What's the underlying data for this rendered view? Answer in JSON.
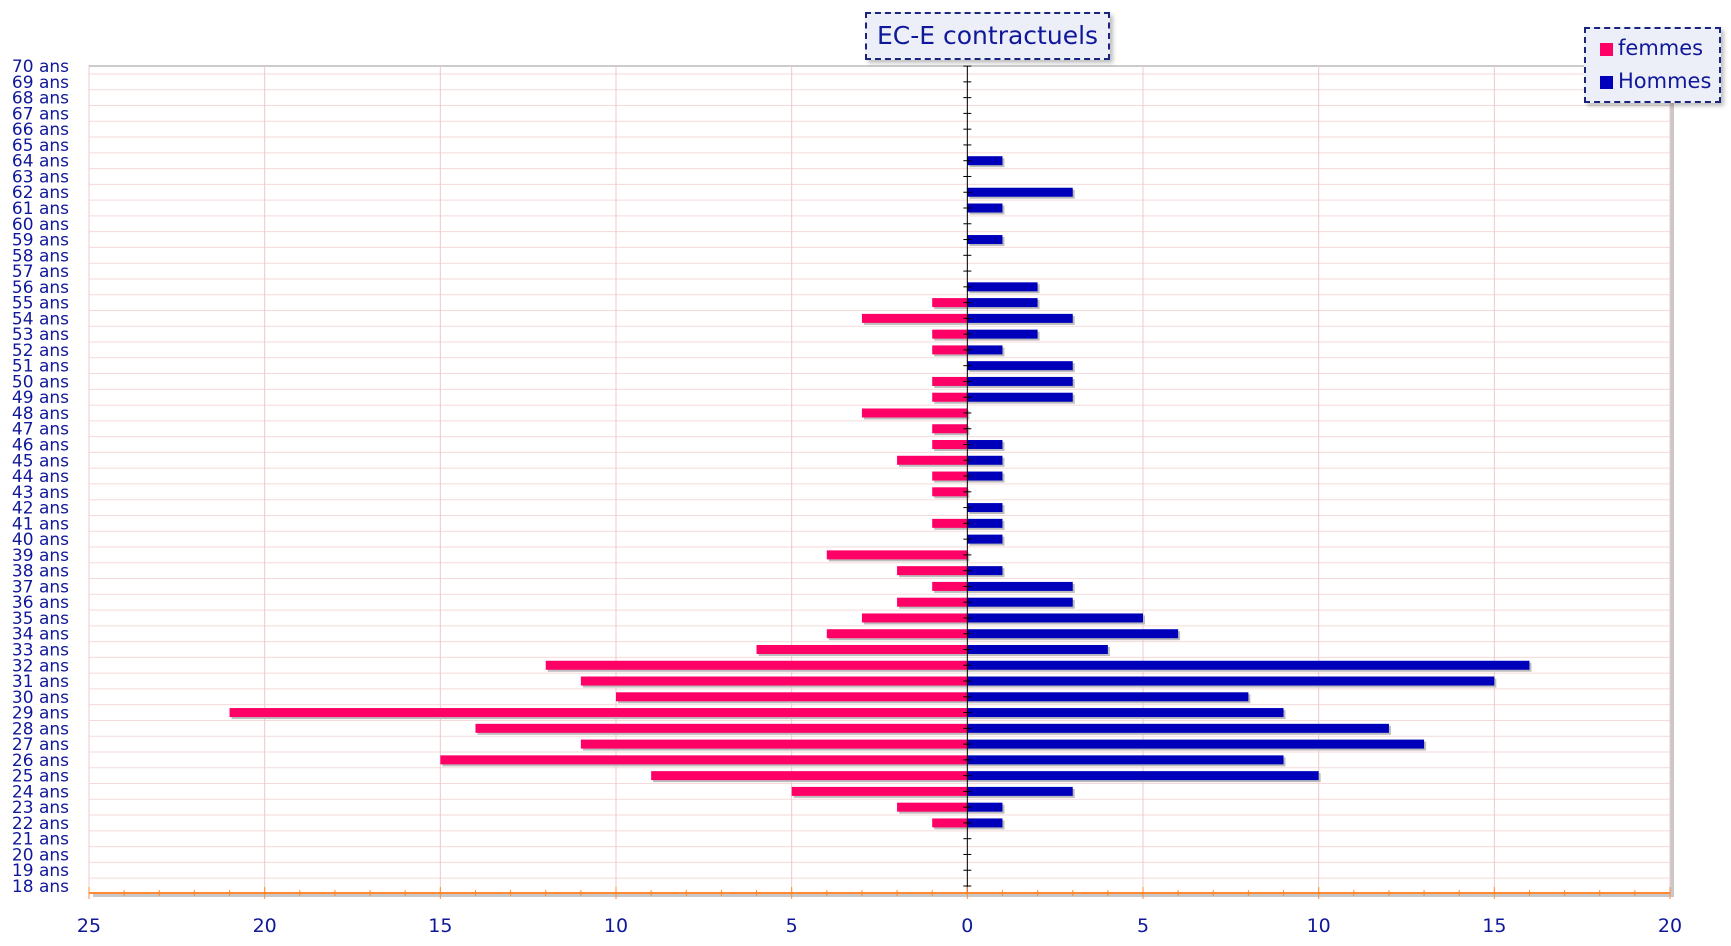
{
  "chart_data": {
    "type": "bar",
    "orientation": "horizontal-pyramid",
    "title": "EC-E contractuels",
    "categories": [
      "18 ans",
      "19 ans",
      "20 ans",
      "21 ans",
      "22 ans",
      "23 ans",
      "24 ans",
      "25 ans",
      "26 ans",
      "27 ans",
      "28 ans",
      "29 ans",
      "30 ans",
      "31 ans",
      "32 ans",
      "33 ans",
      "34 ans",
      "35 ans",
      "36 ans",
      "37 ans",
      "38 ans",
      "39 ans",
      "40 ans",
      "41 ans",
      "42 ans",
      "43 ans",
      "44 ans",
      "45 ans",
      "46 ans",
      "47 ans",
      "48 ans",
      "49 ans",
      "50 ans",
      "51 ans",
      "52 ans",
      "53 ans",
      "54 ans",
      "55 ans",
      "56 ans",
      "57 ans",
      "58 ans",
      "59 ans",
      "60 ans",
      "61 ans",
      "62 ans",
      "63 ans",
      "64 ans",
      "65 ans",
      "66 ans",
      "67 ans",
      "68 ans",
      "69 ans",
      "70 ans"
    ],
    "series": [
      {
        "name": "femmes",
        "color": "#ff0066",
        "direction": "left",
        "values": [
          0,
          0,
          0,
          0,
          1,
          2,
          5,
          9,
          15,
          11,
          14,
          21,
          10,
          11,
          12,
          6,
          4,
          3,
          2,
          1,
          2,
          4,
          0,
          1,
          0,
          1,
          1,
          2,
          1,
          1,
          3,
          1,
          1,
          0,
          1,
          1,
          3,
          1,
          0,
          0,
          0,
          0,
          0,
          0,
          0,
          0,
          0,
          0,
          0,
          0,
          0,
          0,
          0
        ]
      },
      {
        "name": "Hommes",
        "color": "#0000bb",
        "direction": "right",
        "values": [
          0,
          0,
          0,
          0,
          1,
          1,
          3,
          10,
          9,
          13,
          12,
          9,
          8,
          15,
          16,
          4,
          6,
          5,
          3,
          3,
          1,
          0,
          1,
          1,
          1,
          0,
          1,
          1,
          1,
          0,
          0,
          3,
          3,
          3,
          1,
          2,
          3,
          2,
          2,
          0,
          0,
          1,
          0,
          1,
          3,
          0,
          1,
          0,
          0,
          0,
          0,
          0,
          0
        ]
      }
    ],
    "xlim": [
      -25,
      20
    ],
    "x_ticks": [
      {
        "value": -25,
        "label": "25"
      },
      {
        "value": -20,
        "label": "20"
      },
      {
        "value": -15,
        "label": "15"
      },
      {
        "value": -10,
        "label": "10"
      },
      {
        "value": -5,
        "label": "5"
      },
      {
        "value": 0,
        "label": "0"
      },
      {
        "value": 5,
        "label": "5"
      },
      {
        "value": 10,
        "label": "10"
      },
      {
        "value": 15,
        "label": "15"
      },
      {
        "value": 20,
        "label": "20"
      }
    ],
    "grid": true,
    "legend_position": "top-right"
  }
}
